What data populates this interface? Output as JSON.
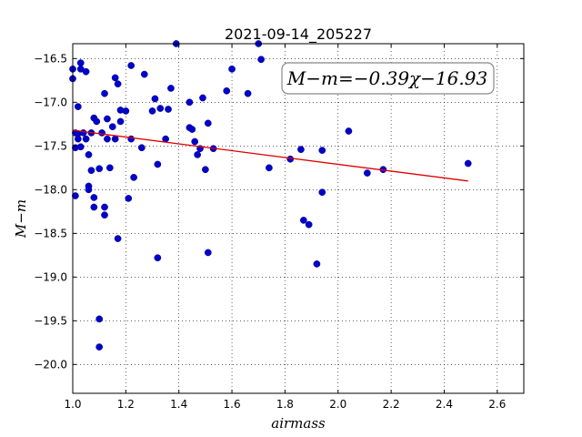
{
  "chart_data": {
    "type": "scatter",
    "title": "2021-09-14_205227",
    "xlabel": "airmass",
    "ylabel": "M−m",
    "xlim": [
      1.0,
      2.7
    ],
    "ylim": [
      -20.33,
      -16.33
    ],
    "y_inverted": true,
    "grid": true,
    "xticks": [
      "1.0",
      "1.2",
      "1.4",
      "1.6",
      "1.8",
      "2.0",
      "2.2",
      "2.4",
      "2.6"
    ],
    "yticks": [
      "−16.5",
      "−17.0",
      "−17.5",
      "−18.0",
      "−18.5",
      "−19.0",
      "−19.5",
      "−20.0"
    ],
    "annotation": "M−m=−0.39χ−16.93",
    "colors": {
      "points": "#0000cc",
      "fit": "#e00000"
    },
    "fit": {
      "slope": -0.39,
      "intercept": -16.93,
      "x_range": [
        1.0,
        2.49
      ]
    },
    "points": [
      [
        1.0,
        -16.62
      ],
      [
        1.0,
        -16.73
      ],
      [
        1.01,
        -17.35
      ],
      [
        1.01,
        -17.52
      ],
      [
        1.01,
        -18.07
      ],
      [
        1.02,
        -17.36
      ],
      [
        1.02,
        -17.42
      ],
      [
        1.02,
        -17.05
      ],
      [
        1.03,
        -16.55
      ],
      [
        1.03,
        -16.62
      ],
      [
        1.03,
        -17.51
      ],
      [
        1.04,
        -17.35
      ],
      [
        1.05,
        -16.65
      ],
      [
        1.05,
        -17.42
      ],
      [
        1.06,
        -17.96
      ],
      [
        1.06,
        -18.0
      ],
      [
        1.06,
        -17.6
      ],
      [
        1.07,
        -17.35
      ],
      [
        1.07,
        -17.78
      ],
      [
        1.08,
        -18.09
      ],
      [
        1.08,
        -18.2
      ],
      [
        1.08,
        -17.18
      ],
      [
        1.09,
        -17.22
      ],
      [
        1.1,
        -17.76
      ],
      [
        1.1,
        -19.48
      ],
      [
        1.1,
        -19.8
      ],
      [
        1.11,
        -17.35
      ],
      [
        1.12,
        -16.9
      ],
      [
        1.12,
        -18.2
      ],
      [
        1.12,
        -18.29
      ],
      [
        1.13,
        -17.19
      ],
      [
        1.13,
        -17.42
      ],
      [
        1.14,
        -17.75
      ],
      [
        1.15,
        -17.28
      ],
      [
        1.16,
        -16.72
      ],
      [
        1.16,
        -17.42
      ],
      [
        1.17,
        -16.79
      ],
      [
        1.17,
        -18.56
      ],
      [
        1.18,
        -17.09
      ],
      [
        1.18,
        -17.22
      ],
      [
        1.2,
        -17.1
      ],
      [
        1.21,
        -18.1
      ],
      [
        1.22,
        -17.42
      ],
      [
        1.22,
        -16.58
      ],
      [
        1.23,
        -17.86
      ],
      [
        1.26,
        -17.52
      ],
      [
        1.27,
        -16.68
      ],
      [
        1.3,
        -17.1
      ],
      [
        1.31,
        -16.96
      ],
      [
        1.32,
        -17.71
      ],
      [
        1.32,
        -18.78
      ],
      [
        1.33,
        -17.07
      ],
      [
        1.35,
        -17.42
      ],
      [
        1.36,
        -17.08
      ],
      [
        1.37,
        -16.84
      ],
      [
        1.39,
        -16.33
      ],
      [
        1.44,
        -17.29
      ],
      [
        1.44,
        -17.0
      ],
      [
        1.45,
        -17.31
      ],
      [
        1.46,
        -17.45
      ],
      [
        1.47,
        -17.6
      ],
      [
        1.48,
        -17.53
      ],
      [
        1.49,
        -16.95
      ],
      [
        1.5,
        -17.77
      ],
      [
        1.51,
        -18.72
      ],
      [
        1.51,
        -17.24
      ],
      [
        1.53,
        -17.53
      ],
      [
        1.58,
        -16.87
      ],
      [
        1.6,
        -16.62
      ],
      [
        1.66,
        -16.9
      ],
      [
        1.7,
        -16.33
      ],
      [
        1.71,
        -16.51
      ],
      [
        1.74,
        -17.75
      ],
      [
        1.82,
        -17.65
      ],
      [
        1.86,
        -17.54
      ],
      [
        1.87,
        -18.35
      ],
      [
        1.89,
        -18.4
      ],
      [
        1.92,
        -18.85
      ],
      [
        1.94,
        -18.03
      ],
      [
        1.94,
        -17.55
      ],
      [
        2.04,
        -17.33
      ],
      [
        2.11,
        -17.81
      ],
      [
        2.17,
        -17.77
      ],
      [
        2.49,
        -17.7
      ]
    ]
  }
}
